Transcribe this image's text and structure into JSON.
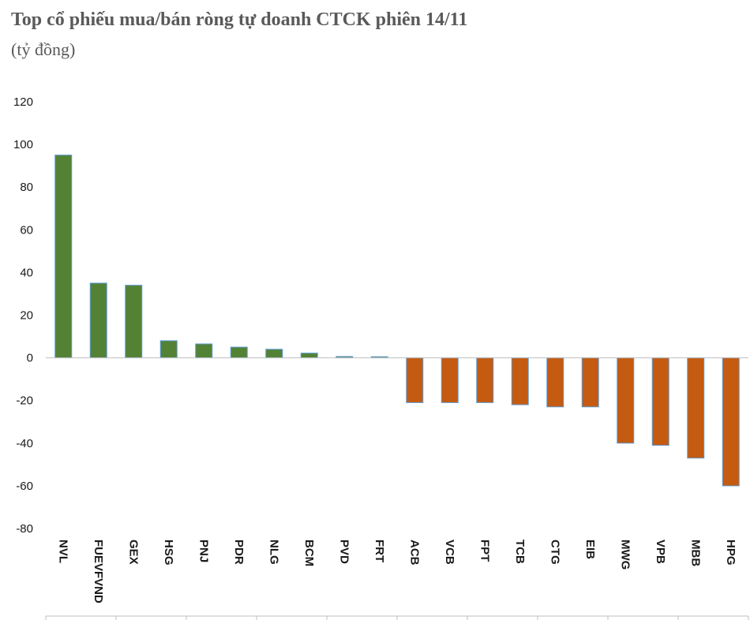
{
  "chart_data": {
    "type": "bar",
    "title": "Top cổ phiếu mua/bán ròng tự doanh CTCK phiên 14/11",
    "subtitle": "(tỷ đồng)",
    "categories": [
      "NVL",
      "FUEVFVND",
      "GEX",
      "HSG",
      "PNJ",
      "PDR",
      "NLG",
      "BCM",
      "PVD",
      "FRT",
      "ACB",
      "VCB",
      "FPT",
      "TCB",
      "CTG",
      "EIB",
      "MWG",
      "VPB",
      "MBB",
      "HPG"
    ],
    "values": [
      95,
      35,
      34,
      8,
      6.5,
      5,
      4,
      2.2,
      0.6,
      0.5,
      -21,
      -21,
      -21,
      -22,
      -23,
      -23,
      -40,
      -41,
      -47,
      -60
    ],
    "ylim": [
      -80,
      120
    ],
    "yticks": [
      "120",
      "100",
      "80",
      "60",
      "40",
      "20",
      "0",
      "-20",
      "-40",
      "-60",
      "-80"
    ],
    "grid": false,
    "legend": "none",
    "colors": {
      "positive_fill": "#548235",
      "negative_fill": "#C55A11",
      "bar_outline": "#5B9BD5",
      "axis": "#bfbfbf"
    }
  }
}
